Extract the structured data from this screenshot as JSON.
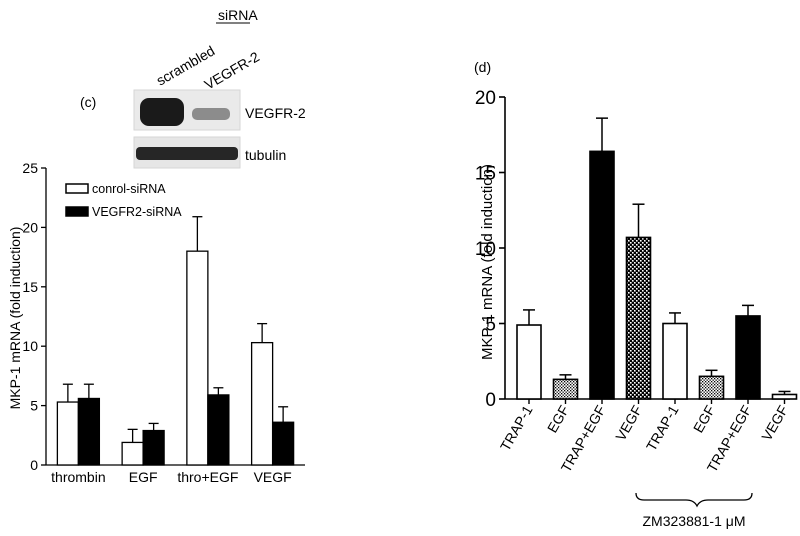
{
  "panel_c": {
    "label": "(c)",
    "blot": {
      "header": "siRNA",
      "lanes": [
        "scrambled",
        "VEGFR-2"
      ],
      "bands": [
        "VEGFR-2",
        "tubulin"
      ]
    }
  },
  "panel_d": {
    "label": "(d)",
    "bracket_label": "ZM323881-1 μM"
  },
  "chart_data": [
    {
      "type": "bar",
      "panel": "c",
      "categories": [
        "thrombin",
        "EGF",
        "thro+EGF",
        "VEGF"
      ],
      "ylabel": "MKP-1 mRNA (fold induction)",
      "xlabel": "",
      "ylim": [
        0,
        25
      ],
      "yticks": [
        0,
        5,
        10,
        15,
        20,
        25
      ],
      "legend_position": "top-left",
      "series": [
        {
          "name": "conrol-siRNA",
          "fill": "#ffffff",
          "values": [
            5.3,
            1.9,
            18.0,
            10.3
          ],
          "errors": [
            1.5,
            1.1,
            2.9,
            1.6
          ]
        },
        {
          "name": "VEGFR2-siRNA",
          "fill": "#000000",
          "values": [
            5.6,
            2.9,
            5.9,
            3.6
          ],
          "errors": [
            1.2,
            0.6,
            0.6,
            1.3
          ]
        }
      ]
    },
    {
      "type": "bar",
      "panel": "d",
      "categories": [
        "TRAP-1",
        "EGF",
        "TRAP+EGF",
        "VEGF",
        "TRAP-1",
        "EGF",
        "TRAP+EGF",
        "VEGF"
      ],
      "ylabel": "MKP-1 mRNA (fold induction)",
      "xlabel": "",
      "ylim": [
        0,
        20
      ],
      "yticks": [
        0,
        5,
        10,
        15,
        20
      ],
      "values": [
        4.9,
        1.3,
        16.4,
        10.7,
        5.0,
        1.5,
        5.5,
        0.3
      ],
      "errors": [
        1.0,
        0.3,
        2.2,
        2.2,
        0.7,
        0.4,
        0.7,
        0.2
      ],
      "fills": [
        "white",
        "dotted",
        "black",
        "crosshatch",
        "white",
        "dotted",
        "black",
        "white"
      ]
    }
  ]
}
